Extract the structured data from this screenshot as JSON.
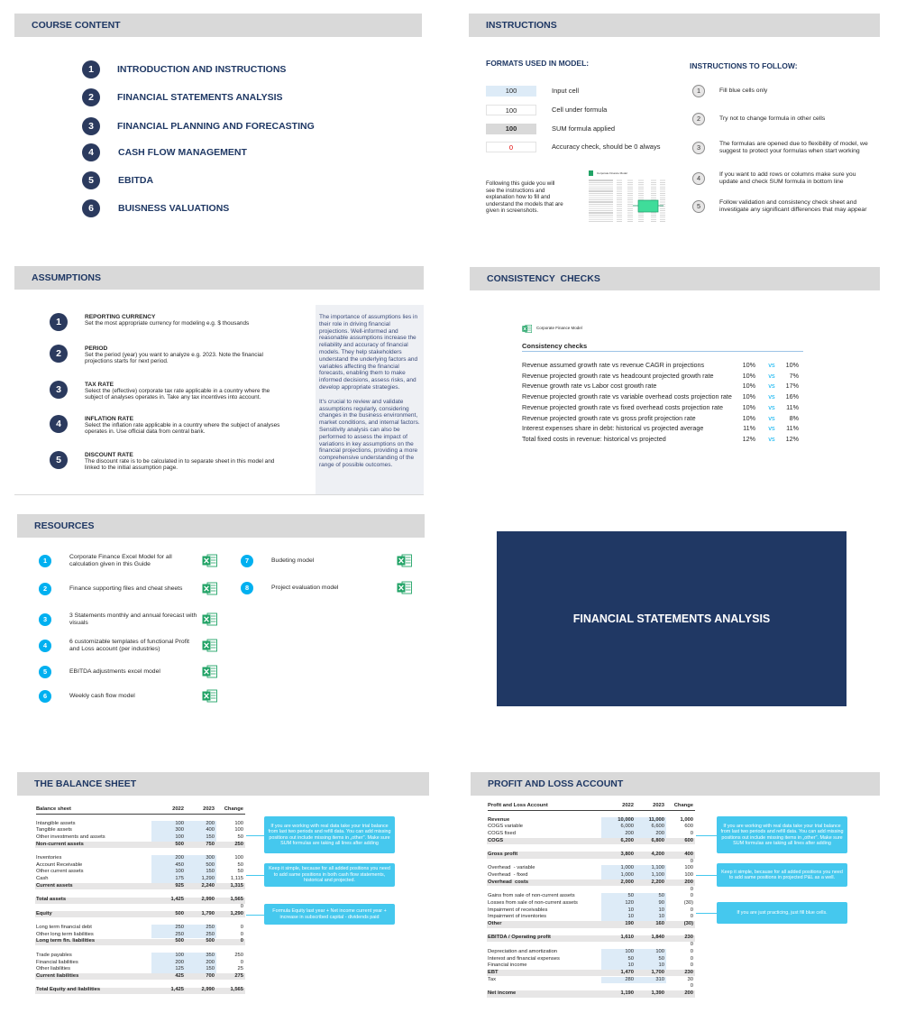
{
  "course_content": {
    "title": "COURSE CONTENT",
    "items": [
      {
        "num": 1,
        "text": "INTRODUCTION AND INSTRUCTIONS"
      },
      {
        "num": 2,
        "text": "FINANCIAL STATEMENTS ANALYSIS"
      },
      {
        "num": 3,
        "text": "FINANCIAL PLANNING AND FORECASTING"
      },
      {
        "num": 4,
        "text": "CASH FLOW MANAGEMENT"
      },
      {
        "num": 5,
        "text": "EBITDA"
      },
      {
        "num": 6,
        "text": "BUISNESS VALUATIONS"
      }
    ]
  },
  "instructions": {
    "title": "INSTRUCTIONS",
    "formats_heading": "FORMATS USED IN MODEL:",
    "formats": [
      {
        "cell": "100",
        "label": "Input cell"
      },
      {
        "cell": "100",
        "label": "Cell under formula"
      },
      {
        "cell": "100",
        "label": "SUM formula applied"
      },
      {
        "cell": "0",
        "label": "Accuracy check, should be 0 always"
      }
    ],
    "guide": "Following this guide you will see the instructions and explanation how to fill and understand the models that are given in screenshots.",
    "thumbnail_title": "Corporate Finance Model",
    "steps_heading": "INSTRUCTIONS TO FOLLOW:",
    "steps": [
      {
        "num": 1,
        "text": "Fill blue cells only"
      },
      {
        "num": 2,
        "text": "Try not to change formula in other cells"
      },
      {
        "num": 3,
        "text": "The formulas are opened due to flexibility of model, we suggest to protect your formulas when start working"
      },
      {
        "num": 4,
        "text": "If you want to add rows or columns make sure you update and check SUM formula in bottom line"
      },
      {
        "num": 5,
        "text": "Follow validation and consistency check sheet and investigate any significant differences that may appear"
      }
    ]
  },
  "assumptions": {
    "title": "ASSUMPTIONS",
    "items": [
      {
        "num": 1,
        "title": "REPORTING CURRENCY",
        "text": "Set the most appropriate currency for modeling e.g. $ thousands"
      },
      {
        "num": 2,
        "title": "PERIOD",
        "text": "Set the period (year) you want to analyze e.g. 2023. Note the financial projections starts for next period."
      },
      {
        "num": 3,
        "title": "TAX RATE",
        "text": "Select the (effective) corporate tax rate applicable in a country where the subject of analyses operates in. Take any tax incentives into account."
      },
      {
        "num": 4,
        "title": "INFLATION RATE",
        "text": "Select the inflation rate applicable in a country where the subject of analyses operates in. Use official data from central bank."
      },
      {
        "num": 5,
        "title": "DISCOUNT RATE",
        "text": "The discount rate is to be calculated in to separate sheet in this model and linked to the initial assumption page."
      }
    ],
    "note": [
      "The importance of assumptions lies in their role in driving financial projections. Well-informed and reasonable assumptions increase the reliability and accuracy of financial models. They help stakeholders understand the underlying factors and variables affecting the financial forecasts, enabling them to make informed decisions, assess risks, and develop appropriate strategies.",
      "It's crucial to review and validate assumptions regularly, considering changes in the business environment, market conditions, and internal factors. Sensitivity analysis can also be performed to assess the impact of variations in key assumptions on the financial projections, providing a more comprehensive understanding of the range of possible outcomes."
    ]
  },
  "consistency": {
    "title": "CONSISTENCY  CHECKS",
    "model_name": "Corporate Finance Model",
    "heading": "Consistency checks",
    "separator": "vs",
    "rows": [
      {
        "label": "Revenue assumed growth rate vs revenue CAGR in projections",
        "a": "10%",
        "b": "10%"
      },
      {
        "label": "Revenue projected growth rate vs headcount projected growth rate",
        "a": "10%",
        "b": "7%"
      },
      {
        "label": "Revenue growth rate vs Labor cost growth rate",
        "a": "10%",
        "b": "17%"
      },
      {
        "label": "Revenue projected growth rate vs variable overhead costs projection rate",
        "a": "10%",
        "b": "16%"
      },
      {
        "label": "Revenue projected growth rate vs fixed overhead costs projection rate",
        "a": "10%",
        "b": "11%"
      },
      {
        "label": "Revenue projected growth rate vs gross profit projection rate",
        "a": "10%",
        "b": "8%"
      },
      {
        "label": "Interest expenses share in debt: historical vs projected average",
        "a": "11%",
        "b": "11%"
      },
      {
        "label": "Total fixed costs in revenue: historical vs projected",
        "a": "12%",
        "b": "12%"
      }
    ]
  },
  "resources": {
    "title": "RESOURCES",
    "items": [
      {
        "num": 1,
        "text": "Corporate Finance Excel Model for all calculation given in this Guide"
      },
      {
        "num": 2,
        "text": "Finance supporting files and cheat sheets"
      },
      {
        "num": 3,
        "text": "3 Statements monthly and annual forecast with visuals"
      },
      {
        "num": 4,
        "text": "6 customizable templates of functional Profit and Loss account (per industries)"
      },
      {
        "num": 5,
        "text": "EBITDA adjustments excel model"
      },
      {
        "num": 6,
        "text": "Weekly cash flow model"
      },
      {
        "num": 7,
        "text": "Budeting model"
      },
      {
        "num": 8,
        "text": "Project evaluation model"
      }
    ]
  },
  "section_banner": "FINANCIAL STATEMENTS ANALYSIS",
  "balance_sheet": {
    "title": "THE BALANCE SHEET",
    "header": {
      "label": "Balance sheet",
      "cols": [
        "2022",
        "2023",
        "Change"
      ]
    },
    "groups": [
      [
        {
          "label": "Intangible assets",
          "values": [
            "100",
            "200",
            "100"
          ]
        },
        {
          "label": "Tangible assets",
          "values": [
            "300",
            "400",
            "100"
          ]
        },
        {
          "label": "Other investments and assets",
          "values": [
            "100",
            "150",
            "50"
          ]
        },
        {
          "label": "Non-current assets",
          "values": [
            "500",
            "750",
            "250"
          ],
          "total": true
        }
      ],
      [
        {
          "label": "Inventories",
          "values": [
            "200",
            "300",
            "100"
          ]
        },
        {
          "label": "Account Receivable",
          "values": [
            "450",
            "500",
            "50"
          ]
        },
        {
          "label": "Other current assets",
          "values": [
            "100",
            "150",
            "50"
          ]
        },
        {
          "label": "Cash",
          "values": [
            "175",
            "1,290",
            "1,115"
          ]
        },
        {
          "label": "Current assets",
          "values": [
            "925",
            "2,240",
            "1,315"
          ],
          "total": true
        }
      ],
      [
        {
          "label": "Total assets",
          "values": [
            "1,425",
            "2,990",
            "1,565"
          ],
          "total": true
        },
        {
          "values": [
            null,
            null,
            "0"
          ]
        },
        {
          "label": "Equity",
          "values": [
            "500",
            "1,790",
            "1,290"
          ],
          "total": true
        }
      ],
      [
        {
          "label": "Long term financial debt",
          "values": [
            "250",
            "250",
            "0"
          ]
        },
        {
          "label": "Other long term liabilities",
          "values": [
            "250",
            "250",
            "0"
          ]
        },
        {
          "label": "Long term fin. liabilities",
          "values": [
            "500",
            "500",
            "0"
          ],
          "total": true
        }
      ],
      [
        {
          "label": "Trade payables",
          "values": [
            "100",
            "350",
            "250"
          ]
        },
        {
          "label": "Financial liabilities",
          "values": [
            "200",
            "200",
            "0"
          ]
        },
        {
          "label": "Other liabilities",
          "values": [
            "125",
            "150",
            "25"
          ]
        },
        {
          "label": "Current liabilities",
          "values": [
            "425",
            "700",
            "275"
          ],
          "total": true
        }
      ],
      [
        {
          "label": "Total Equity and liabilities",
          "values": [
            "1,425",
            "2,990",
            "1,565"
          ],
          "total": true
        }
      ]
    ],
    "callouts": [
      "If you are working with real data take your trial balance from last two periods and refill data. You can add missing positions out include missing items in „other\". Make sure SUM formulas are taking all lines after adding",
      "Keep it simple, because for all added positions you need to add same positions in both cash flow statements, historical and projected.",
      "Formula Equity last year + Net income current year + increase in subscribed capital - dividends paid"
    ]
  },
  "profit_and_loss": {
    "title": "PROFIT AND LOSS ACCOUNT",
    "header": {
      "label": "Profit and Loss Account",
      "cols": [
        "2022",
        "2023",
        "Change"
      ]
    },
    "groups": [
      [
        {
          "label": "Revenue",
          "values": [
            "10,000",
            "11,000",
            "1,000"
          ],
          "bold": true
        },
        {
          "label": "COGS variable",
          "values": [
            "6,000",
            "6,600",
            "600"
          ]
        },
        {
          "label": "COGS fixed",
          "values": [
            "200",
            "200",
            "0"
          ]
        },
        {
          "label": "COGS",
          "values": [
            "6,200",
            "6,800",
            "600"
          ],
          "total": true
        }
      ],
      [
        {
          "label": "Gross profit",
          "values": [
            "3,800",
            "4,200",
            "400"
          ],
          "total": true
        },
        {
          "values": [
            null,
            null,
            "0"
          ]
        },
        {
          "label": "Overhead  - variable",
          "values": [
            "1,000",
            "1,100",
            "100"
          ]
        },
        {
          "label": "Overhead  - fixed",
          "values": [
            "1,000",
            "1,100",
            "100"
          ]
        },
        {
          "label": "Overhead  costs",
          "values": [
            "2,000",
            "2,200",
            "200"
          ],
          "total": true
        },
        {
          "values": [
            null,
            null,
            "0"
          ]
        },
        {
          "label": "Gains from sale of non-current assets",
          "values": [
            "50",
            "50",
            "0"
          ]
        },
        {
          "label": "Losses from sale of non-current assets",
          "values": [
            "120",
            "90",
            "(30)"
          ]
        },
        {
          "label": "Impairment of receivables",
          "values": [
            "10",
            "10",
            "0"
          ]
        },
        {
          "label": "Impairment of inventories",
          "values": [
            "10",
            "10",
            "0"
          ]
        },
        {
          "label": "Other",
          "values": [
            "190",
            "160",
            "(30)"
          ],
          "total": true
        }
      ],
      [
        {
          "label": "EBITDA / Operating profit",
          "values": [
            "1,610",
            "1,840",
            "230"
          ],
          "total": true
        },
        {
          "values": [
            null,
            null,
            "0"
          ]
        },
        {
          "label": "Depreciation and amortization",
          "values": [
            "100",
            "100",
            "0"
          ]
        },
        {
          "label": "Interest and financial expenses",
          "values": [
            "50",
            "50",
            "0"
          ]
        },
        {
          "label": "Financial income",
          "values": [
            "10",
            "10",
            "0"
          ]
        },
        {
          "label": "EBT",
          "values": [
            "1,470",
            "1,700",
            "230"
          ],
          "total": true
        },
        {
          "label": "Tax",
          "values": [
            "280",
            "310",
            "30"
          ]
        },
        {
          "values": [
            null,
            null,
            "0"
          ]
        },
        {
          "label": "Net income",
          "values": [
            "1,190",
            "1,390",
            "200"
          ],
          "total": true
        }
      ]
    ],
    "callouts": [
      "If you are working with real data take your trial balance from last two periods and refill data. You can add missing positions out include missing items in „other\". Make sure SUM formulas are taking all lines after adding",
      "Keep it simple, because for all added positions you need to add same positions in projected P&L as a well.",
      "If you are just practicing, just fill blue cells."
    ]
  }
}
